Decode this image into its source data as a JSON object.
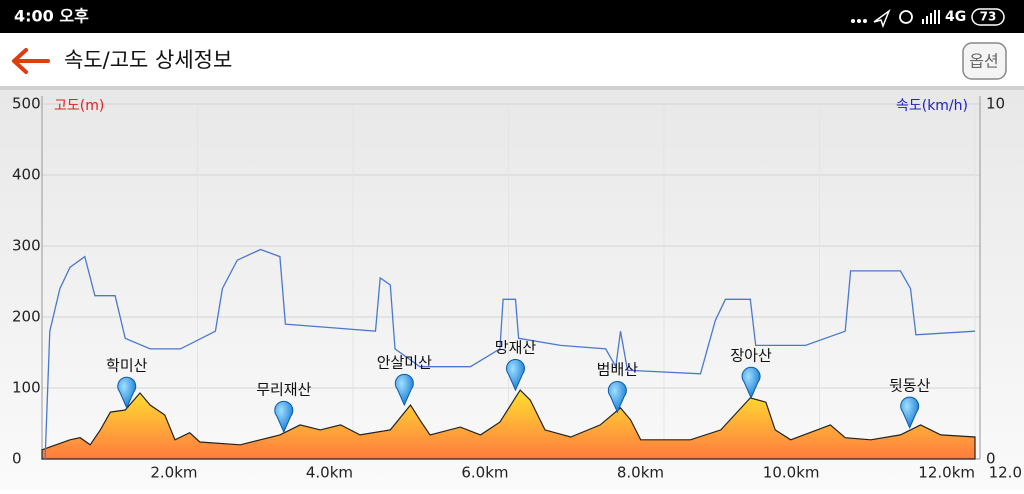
{
  "status_bar": {
    "time": "4:00 오후",
    "network": "4G",
    "battery": "73"
  },
  "header": {
    "title": "속도/고도 상세정보",
    "button": "옵션"
  },
  "chart_data": {
    "type": "line",
    "xlim": [
      0,
      12
    ],
    "xticks": [
      {
        "value": 2,
        "label": "2.0km"
      },
      {
        "value": 4,
        "label": "4.0km"
      },
      {
        "value": 6,
        "label": "6.0km"
      },
      {
        "value": 8,
        "label": "8.0km"
      },
      {
        "value": 10,
        "label": "10.0km"
      },
      {
        "value": 12,
        "label": "12.0km"
      }
    ],
    "x_end_label": "12.0",
    "ylim": [
      0,
      500
    ],
    "yticks": [
      0,
      100,
      200,
      300,
      400,
      500
    ],
    "y2lim": [
      0,
      10
    ],
    "y2ticks": [
      0,
      10
    ],
    "ylabel": "고도(m)",
    "ylabel_color": "#e02020",
    "y2label": "속도(km/h)",
    "y2label_color": "#2020c0",
    "grid": true,
    "series": [
      {
        "type": "area",
        "color": "#ffa030",
        "x": [
          0,
          0.36,
          0.49,
          0.62,
          0.75,
          0.88,
          1.07,
          1.26,
          1.39,
          1.58,
          1.71,
          1.9,
          2.03,
          2.55,
          3.06,
          3.32,
          3.58,
          3.84,
          4.09,
          4.48,
          4.74,
          4.86,
          4.99,
          5.38,
          5.64,
          5.89,
          6.15,
          6.28,
          6.47,
          6.8,
          7.18,
          7.44,
          7.57,
          7.7,
          8.34,
          8.73,
          9.11,
          9.31,
          9.43,
          9.63,
          10.14,
          10.33,
          10.66,
          11.04,
          11.3,
          11.56,
          12
        ],
        "values": [
          13,
          27,
          30,
          20,
          41,
          66,
          69,
          93,
          76,
          62,
          27,
          37,
          24,
          20,
          34,
          48,
          41,
          48,
          34,
          41,
          76,
          55,
          34,
          45,
          34,
          52,
          97,
          83,
          41,
          31,
          48,
          72,
          55,
          27,
          27,
          41,
          86,
          80,
          41,
          27,
          48,
          30,
          27,
          34,
          48,
          34,
          31
        ]
      },
      {
        "type": "line",
        "axis": "y2",
        "color": "#4a78d0",
        "x": [
          0.04,
          0.1,
          0.23,
          0.36,
          0.55,
          0.68,
          0.94,
          1.07,
          1.39,
          1.78,
          2.23,
          2.32,
          2.51,
          2.81,
          3.06,
          3.13,
          3.71,
          4.29,
          4.35,
          4.48,
          4.54,
          4.86,
          5.51,
          5.89,
          5.93,
          6.09,
          6.13,
          6.67,
          7.25,
          7.38,
          7.44,
          7.53,
          8.47,
          8.66,
          8.79,
          9.11,
          9.18,
          9.82,
          10.33,
          10.4,
          11.04,
          11.17,
          11.24,
          12
        ],
        "values": [
          0,
          3.6,
          4.8,
          5.4,
          5.7,
          4.6,
          4.6,
          3.4,
          3.1,
          3.1,
          3.6,
          4.8,
          5.6,
          5.9,
          5.7,
          3.8,
          3.7,
          3.6,
          5.1,
          4.9,
          3.1,
          2.6,
          2.6,
          3.1,
          4.5,
          4.5,
          3.4,
          3.2,
          3.1,
          2.6,
          3.6,
          2.5,
          2.4,
          3.9,
          4.5,
          4.5,
          3.2,
          3.2,
          3.6,
          5.3,
          5.3,
          4.8,
          3.5,
          3.6
        ]
      }
    ],
    "annotations": [
      {
        "text": "학미산",
        "x": 1.09,
        "y": 72
      },
      {
        "text": "무리재산",
        "x": 3.11,
        "y": 38
      },
      {
        "text": "안살미산",
        "x": 4.66,
        "y": 76
      },
      {
        "text": "망재산",
        "x": 6.09,
        "y": 97
      },
      {
        "text": "범배산",
        "x": 7.4,
        "y": 66
      },
      {
        "text": "장아산",
        "x": 9.12,
        "y": 86
      },
      {
        "text": "뒷동산",
        "x": 11.16,
        "y": 44
      }
    ]
  }
}
